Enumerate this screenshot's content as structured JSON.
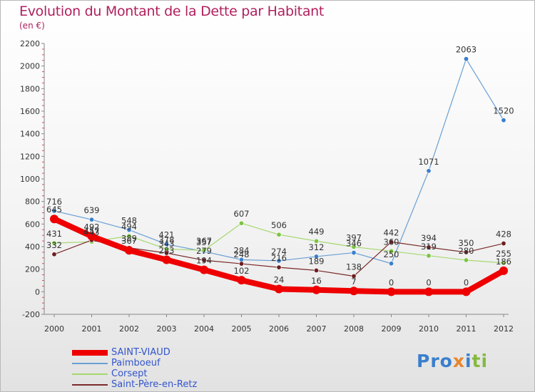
{
  "title": "Evolution du Montant de la Dette par Habitant",
  "subtitle": "(en €)",
  "logo_text": "Proxiti",
  "chart_data": {
    "type": "line",
    "title": "Evolution du Montant de la Dette par Habitant",
    "subtitle": "(en €)",
    "xlabel": "",
    "ylabel": "",
    "x": [
      "2000",
      "2001",
      "2002",
      "2003",
      "2004",
      "2005",
      "2006",
      "2007",
      "2008",
      "2009",
      "2010",
      "2011",
      "2012"
    ],
    "ylim": [
      -200,
      2200
    ],
    "yticks": [
      -200,
      0,
      200,
      400,
      600,
      800,
      1000,
      1200,
      1400,
      1600,
      1800,
      2000,
      2200
    ],
    "grid": false,
    "legend_position": "bottom-left",
    "series": [
      {
        "name": "SAINT-VIAUD",
        "color": "#ee0000",
        "marker": "#ee0000",
        "width": 8,
        "values": [
          645,
          492,
          367,
          283,
          194,
          102,
          24,
          16,
          7,
          0,
          0,
          0,
          186
        ]
      },
      {
        "name": "Paimboeuf",
        "color": "#6a9fd4",
        "marker": "#3a7fcc",
        "width": 1.2,
        "values": [
          716,
          639,
          548,
          421,
          357,
          284,
          274,
          312,
          346,
          250,
          1071,
          2063,
          1520
        ]
      },
      {
        "name": "Corsept",
        "color": "#a5d86e",
        "marker": "#7cc443",
        "width": 1.2,
        "values": [
          431,
          443,
          494,
          378,
          367,
          607,
          506,
          449,
          397,
          360,
          319,
          280,
          255
        ]
      },
      {
        "name": "Saint-Père-en-Retz",
        "color": "#7a2a2a",
        "marker": "#6e1e22",
        "width": 1.2,
        "values": [
          332,
          457,
          389,
          343,
          279,
          248,
          216,
          189,
          138,
          442,
          394,
          350,
          428
        ]
      }
    ]
  }
}
